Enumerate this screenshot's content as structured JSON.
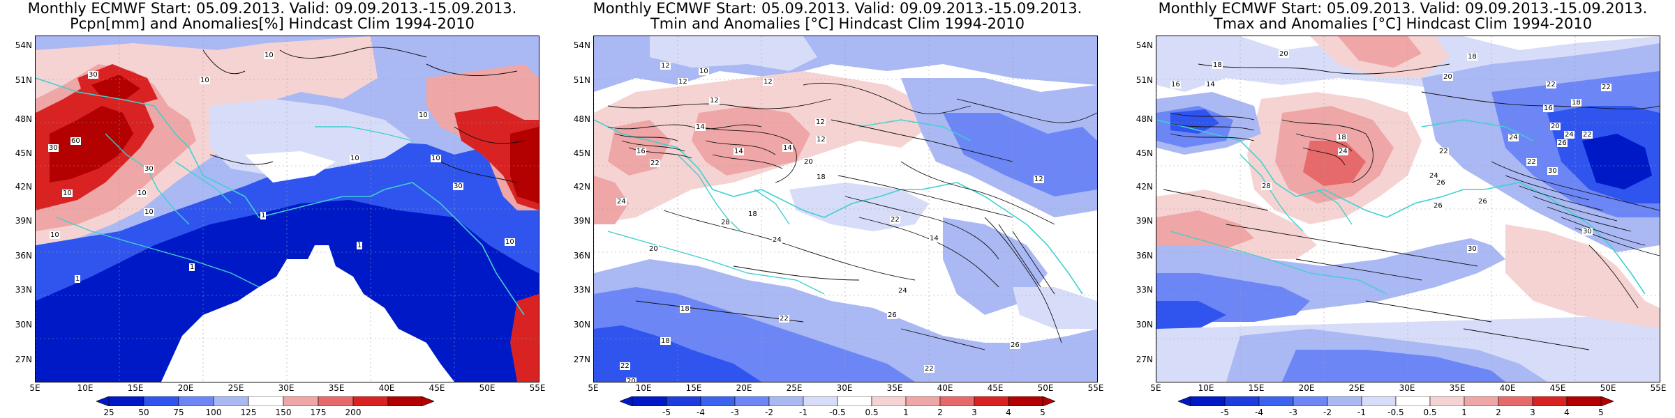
{
  "colors": {
    "dark_blue": "#0019c6",
    "blue": "#2f55ee",
    "mid_blue": "#6c86f6",
    "light_blue": "#aab8f4",
    "pale_blue": "#d7ddf8",
    "white": "#ffffff",
    "pale_red": "#f6d3d3",
    "light_red": "#efa6a6",
    "mid_red": "#e66a6a",
    "red": "#d92323",
    "dark_red": "#b30000",
    "coast": "#3fd0d0",
    "border": "#7cc4c4",
    "contour": "#111111"
  },
  "panels": [
    {
      "id": "precip",
      "title_line1": "Monthly ECMWF Start: 05.09.2013. Valid: 09.09.2013.-15.09.2013.",
      "title_line2": "Pcpn[mm] and Anomalies[%] Hindcast Clim 1994-2010",
      "lat_labels": [
        "54N",
        "51N",
        "48N",
        "45N",
        "42N",
        "39N",
        "36N",
        "33N",
        "30N",
        "27N"
      ],
      "lon_labels": [
        "5E",
        "10E",
        "15E",
        "20E",
        "25E",
        "30E",
        "35E",
        "40E",
        "45E",
        "50E",
        "55E"
      ],
      "colorbar_ticks": [
        "25",
        "50",
        "75",
        "100",
        "125",
        "150",
        "175",
        "200"
      ],
      "contour_labels": [
        "10",
        "10",
        "30",
        "30",
        "60",
        "10",
        "10",
        "10",
        "1",
        "1",
        "1",
        "10",
        "30",
        "10",
        "10",
        "1",
        "30",
        "10",
        "10"
      ]
    },
    {
      "id": "tmin",
      "title_line1": "Monthly ECMWF Start: 05.09.2013. Valid: 09.09.2013.-15.09.2013.",
      "title_line2": "Tmin and Anomalies [°C] Hindcast Clim 1994-2010",
      "lat_labels": [
        "54N",
        "51N",
        "48N",
        "45N",
        "42N",
        "39N",
        "36N",
        "33N",
        "30N",
        "27N"
      ],
      "lon_labels": [
        "5E",
        "10E",
        "15E",
        "20E",
        "25E",
        "30E",
        "35E",
        "40E",
        "45E",
        "50E",
        "55E"
      ],
      "colorbar_ticks": [
        "-5",
        "-4",
        "-3",
        "-2",
        "-1",
        "-0.5",
        "0.5",
        "1",
        "2",
        "3",
        "4",
        "5"
      ],
      "contour_labels": [
        "12",
        "12",
        "10",
        "12",
        "12",
        "14",
        "12",
        "14",
        "16",
        "14",
        "20",
        "22",
        "12",
        "18",
        "24",
        "18",
        "28",
        "22",
        "20",
        "24",
        "24",
        "18",
        "22",
        "26",
        "22",
        "26",
        "18",
        "20",
        "22",
        "14",
        "12"
      ]
    },
    {
      "id": "tmax",
      "title_line1": "Monthly ECMWF Start: 05.09.2013. Valid: 09.09.2013.-15.09.2013.",
      "title_line2": "Tmax and Anomalies [°C] Hindcast Clim 1994-2010",
      "lat_labels": [
        "54N",
        "51N",
        "48N",
        "45N",
        "42N",
        "39N",
        "36N",
        "33N",
        "30N",
        "27N"
      ],
      "lon_labels": [
        "5E",
        "10E",
        "15E",
        "20E",
        "25E",
        "30E",
        "35E",
        "40E",
        "45E",
        "50E",
        "55E"
      ],
      "colorbar_ticks": [
        "-5",
        "-4",
        "-3",
        "-2",
        "-1",
        "-0.5",
        "0.5",
        "1",
        "2",
        "3",
        "4",
        "5"
      ],
      "contour_labels": [
        "20",
        "18",
        "18",
        "16",
        "14",
        "18",
        "20",
        "22",
        "24",
        "22",
        "22",
        "18",
        "16",
        "20",
        "24",
        "22",
        "26",
        "24",
        "22",
        "28",
        "30",
        "26",
        "26",
        "30",
        "30",
        "24",
        "26"
      ]
    }
  ]
}
